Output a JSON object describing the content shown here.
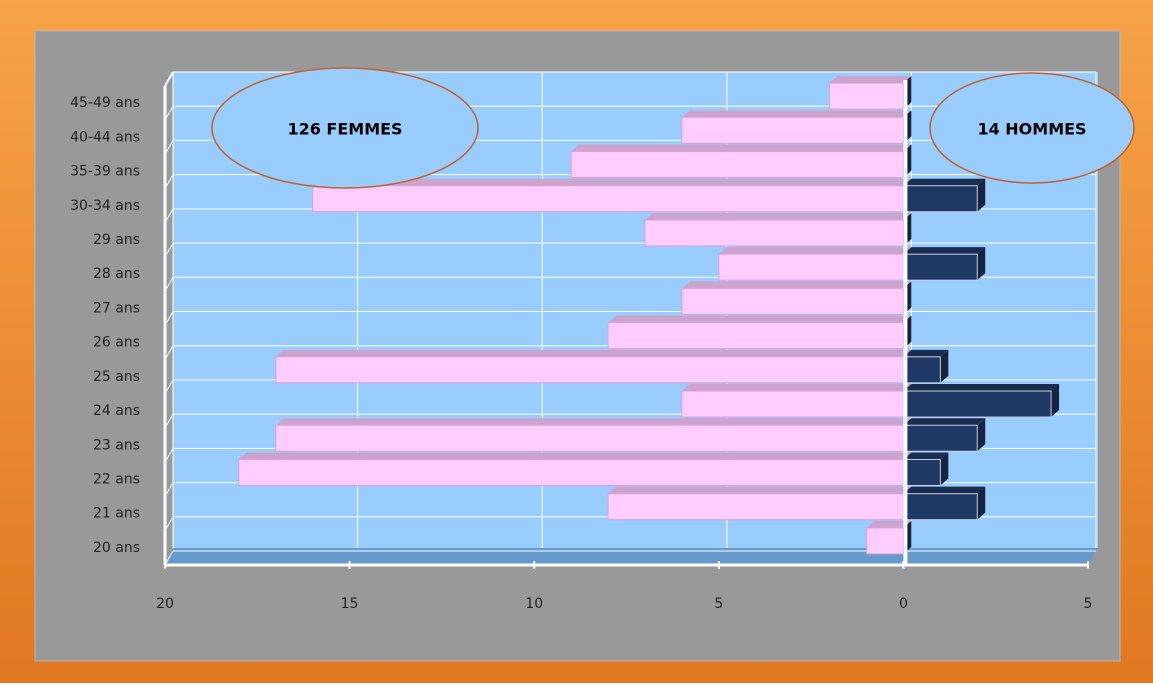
{
  "chart_data": {
    "type": "pyramid",
    "categories": [
      "20 ans",
      "21 ans",
      "22 ans",
      "23 ans",
      "24 ans",
      "25 ans",
      "26 ans",
      "27 ans",
      "28 ans",
      "29 ans",
      "30-34 ans",
      "35-39 ans",
      "40-44 ans",
      "45-49 ans"
    ],
    "series": [
      {
        "color": "#ffccff",
        "values": [
          -1,
          -8,
          -18,
          -17,
          -6,
          -17,
          -8,
          -6,
          -5,
          -7,
          -16,
          -9,
          -6,
          -2
        ]
      },
      {
        "color": "#1f3864",
        "values": [
          0,
          2,
          1,
          2,
          4,
          1,
          0,
          0,
          2,
          0,
          2,
          0,
          0,
          0
        ]
      }
    ],
    "xlim": [
      -20,
      5
    ],
    "xticks": [
      {
        "value": -20,
        "label": "20"
      },
      {
        "value": -15,
        "label": "15"
      },
      {
        "value": -10,
        "label": "10"
      },
      {
        "value": -5,
        "label": "5"
      },
      0,
      5
    ],
    "annotations": [
      "126 FEMMES",
      "14 HOMMES"
    ],
    "grid": true
  }
}
